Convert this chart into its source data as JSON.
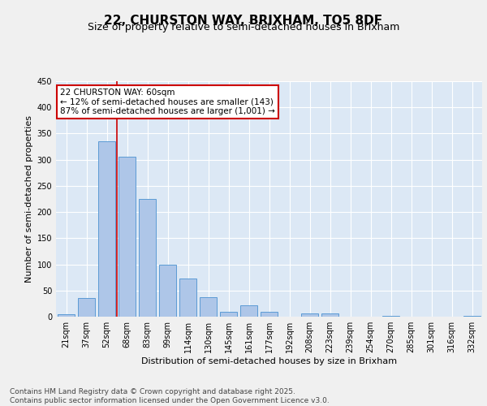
{
  "title_line1": "22, CHURSTON WAY, BRIXHAM, TQ5 8DF",
  "title_line2": "Size of property relative to semi-detached houses in Brixham",
  "xlabel": "Distribution of semi-detached houses by size in Brixham",
  "ylabel": "Number of semi-detached properties",
  "categories": [
    "21sqm",
    "37sqm",
    "52sqm",
    "68sqm",
    "83sqm",
    "99sqm",
    "114sqm",
    "130sqm",
    "145sqm",
    "161sqm",
    "177sqm",
    "192sqm",
    "208sqm",
    "223sqm",
    "239sqm",
    "254sqm",
    "270sqm",
    "285sqm",
    "301sqm",
    "316sqm",
    "332sqm"
  ],
  "values": [
    5,
    35,
    335,
    305,
    225,
    100,
    73,
    37,
    10,
    21,
    10,
    0,
    6,
    6,
    0,
    0,
    1,
    0,
    0,
    0,
    1
  ],
  "bar_color": "#aec6e8",
  "bar_edge_color": "#5b9bd5",
  "bg_color": "#dce8f5",
  "grid_color": "#ffffff",
  "fig_bg_color": "#f0f0f0",
  "annotation_text": "22 CHURSTON WAY: 60sqm\n← 12% of semi-detached houses are smaller (143)\n87% of semi-detached houses are larger (1,001) →",
  "vline_x_index": 2.5,
  "annotation_box_edge": "#cc0000",
  "ylim": [
    0,
    450
  ],
  "yticks": [
    0,
    50,
    100,
    150,
    200,
    250,
    300,
    350,
    400,
    450
  ],
  "footnote": "Contains HM Land Registry data © Crown copyright and database right 2025.\nContains public sector information licensed under the Open Government Licence v3.0.",
  "title_fontsize": 11,
  "subtitle_fontsize": 9,
  "axis_label_fontsize": 8,
  "tick_fontsize": 7,
  "annotation_fontsize": 7.5,
  "footnote_fontsize": 6.5
}
